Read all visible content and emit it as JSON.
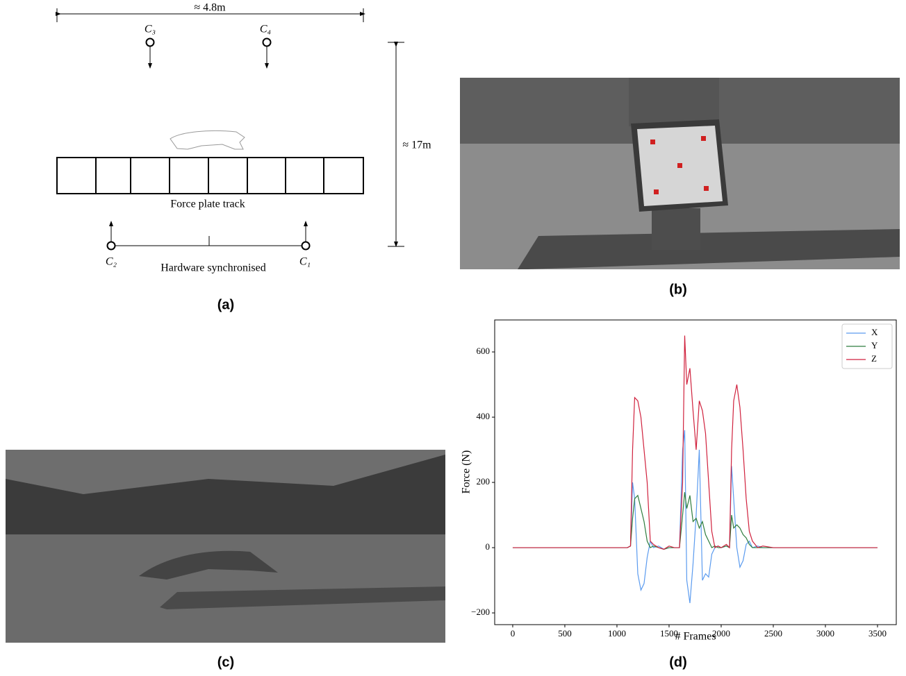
{
  "panels": {
    "a": {
      "label": "(a)",
      "width_label": "≈ 4.8m",
      "height_label": "≈ 17m",
      "cameras": [
        "C₁",
        "C₂",
        "C₃",
        "C₄"
      ],
      "track_label": "Force plate track",
      "sync_label": "Hardware synchronised"
    },
    "b": {
      "label": "(b)"
    },
    "c": {
      "label": "(c)"
    },
    "d": {
      "label": "(d)"
    }
  },
  "chart_data": {
    "type": "line",
    "x_label": "# Frames",
    "y_label": "Force (N)",
    "x": [
      0,
      250,
      500,
      750,
      1000,
      1100,
      1130,
      1150,
      1170,
      1200,
      1230,
      1260,
      1290,
      1320,
      1350,
      1400,
      1450,
      1500,
      1550,
      1600,
      1630,
      1650,
      1670,
      1700,
      1730,
      1760,
      1790,
      1820,
      1850,
      1880,
      1910,
      1940,
      1970,
      2000,
      2050,
      2080,
      2100,
      2120,
      2150,
      2180,
      2210,
      2240,
      2270,
      2300,
      2350,
      2400,
      2500,
      2750,
      3000,
      3250,
      3500
    ],
    "series": [
      {
        "name": "X",
        "color": "#5b9bef",
        "values": [
          0,
          0,
          0,
          0,
          0,
          0,
          5,
          200,
          150,
          -80,
          -130,
          -110,
          -30,
          20,
          0,
          5,
          -5,
          0,
          0,
          0,
          300,
          360,
          -100,
          -170,
          -50,
          100,
          300,
          -100,
          -80,
          -90,
          -20,
          0,
          5,
          0,
          5,
          0,
          250,
          150,
          0,
          -60,
          -40,
          10,
          20,
          0,
          5,
          0,
          0,
          0,
          0,
          0,
          0
        ]
      },
      {
        "name": "Y",
        "color": "#2e7d3e",
        "values": [
          0,
          0,
          0,
          0,
          0,
          0,
          5,
          90,
          150,
          160,
          120,
          80,
          20,
          0,
          5,
          0,
          -5,
          0,
          0,
          0,
          100,
          170,
          120,
          160,
          80,
          90,
          60,
          80,
          40,
          20,
          0,
          5,
          0,
          0,
          5,
          0,
          100,
          60,
          70,
          60,
          40,
          30,
          10,
          0,
          0,
          0,
          0,
          0,
          0,
          0,
          0
        ]
      },
      {
        "name": "Z",
        "color": "#d0213d",
        "values": [
          0,
          0,
          0,
          0,
          0,
          0,
          5,
          300,
          460,
          450,
          400,
          300,
          200,
          20,
          10,
          0,
          -5,
          5,
          0,
          0,
          200,
          650,
          500,
          550,
          420,
          300,
          450,
          420,
          350,
          200,
          50,
          0,
          5,
          0,
          10,
          0,
          300,
          450,
          500,
          430,
          300,
          150,
          50,
          20,
          0,
          5,
          0,
          0,
          0,
          0,
          0
        ]
      }
    ],
    "xlim": [
      -173,
      3680
    ],
    "ylim": [
      -236,
      698
    ],
    "xticks": [
      0,
      500,
      1000,
      1500,
      2000,
      2500,
      3000,
      3500
    ],
    "yticks": [
      {
        "value": -200,
        "label": "−200"
      },
      0,
      200,
      400,
      600
    ],
    "legend": "upper right"
  }
}
